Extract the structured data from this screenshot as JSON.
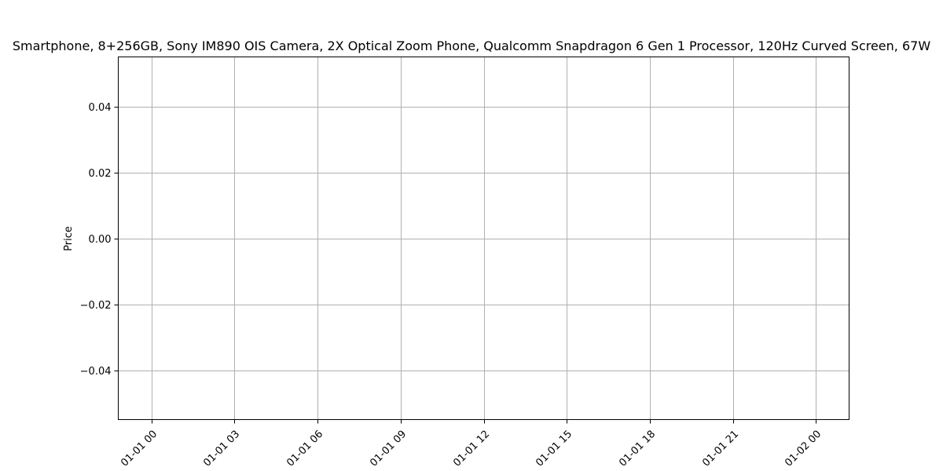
{
  "chart_data": {
    "type": "line",
    "title": "Smartphone, 8+256GB, Sony IM890 OIS Camera, 2X Optical Zoom Phone, Qualcomm Snapdragon 6 Gen 1 Processor, 120Hz Curved Screen, 67W",
    "xlabel": "",
    "ylabel": "Price",
    "x_ticks": [
      "01-01 00",
      "01-01 03",
      "01-01 06",
      "01-01 09",
      "01-01 12",
      "01-01 15",
      "01-01 18",
      "01-01 21",
      "01-02 00"
    ],
    "y_ticks": [
      "0.04",
      "0.02",
      "0.00",
      "−0.02",
      "−0.04"
    ],
    "y_tick_values": [
      0.04,
      0.02,
      0.0,
      -0.02,
      -0.04
    ],
    "ylim": [
      -0.055,
      0.055
    ],
    "x_tick_hours": [
      0,
      3,
      6,
      9,
      12,
      15,
      18,
      21,
      24
    ],
    "xlim_hours": [
      -1.2,
      25.2
    ],
    "grid": true,
    "series": []
  }
}
